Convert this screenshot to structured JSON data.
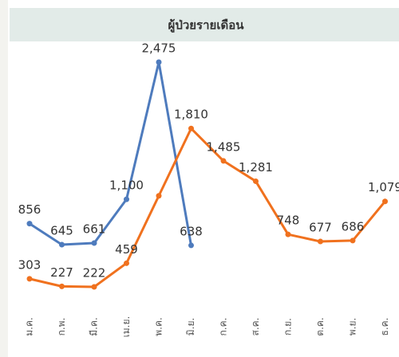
{
  "chart_data": {
    "type": "line",
    "title": "ผู้ป่วยรายเดือน",
    "categories": [
      "ม.ค.",
      "ก.พ.",
      "มี.ค.",
      "เม.ย.",
      "พ.ค.",
      "มิ.ย.",
      "ก.ค.",
      "ส.ค.",
      "ก.ย.",
      "ต.ค.",
      "พ.ย.",
      "ธ.ค."
    ],
    "series": [
      {
        "color": "#4e7bbd",
        "values": [
          856,
          645,
          661,
          1100,
          2475,
          638,
          null,
          null,
          null,
          null,
          null,
          null
        ],
        "value_labels": [
          "856",
          "645",
          "661",
          "1,100",
          "2,475",
          "638",
          null,
          null,
          null,
          null,
          null,
          null
        ]
      },
      {
        "color": "#f0711e",
        "values": [
          303,
          227,
          222,
          459,
          1135,
          1810,
          1485,
          1281,
          748,
          677,
          686,
          1079
        ],
        "value_labels": [
          "303",
          "227",
          "222",
          "459",
          null,
          "1,810",
          "1,485",
          "1,281",
          "748",
          "677",
          "686",
          "1,079"
        ]
      }
    ]
  }
}
